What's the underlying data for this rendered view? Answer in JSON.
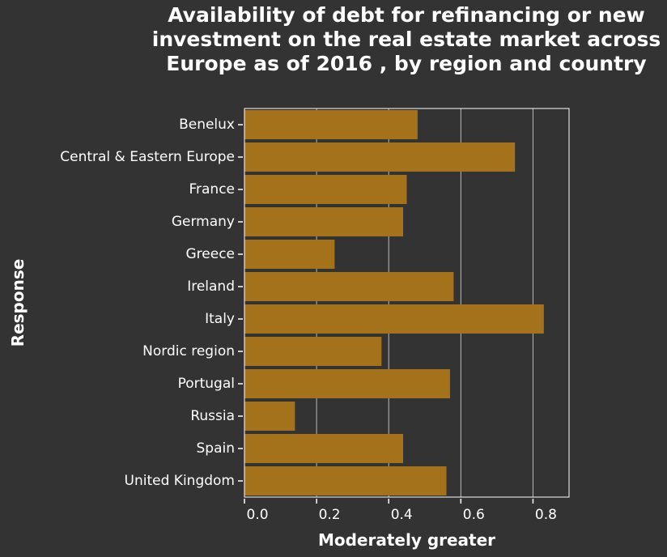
{
  "chart_data": {
    "type": "bar",
    "orientation": "horizontal",
    "title": "Availability of debt for refinancing or new investment on the real estate market across Europe as of 2016 , by region and country",
    "xlabel": "Moderately greater",
    "ylabel": "Response",
    "categories": [
      "Benelux",
      "Central & Eastern Europe",
      "France",
      "Germany",
      "Greece",
      "Ireland",
      "Italy",
      "Nordic region",
      "Portugal",
      "Russia",
      "Spain",
      "United Kingdom"
    ],
    "values": [
      0.48,
      0.75,
      0.45,
      0.44,
      0.25,
      0.58,
      0.83,
      0.38,
      0.57,
      0.14,
      0.44,
      0.56
    ],
    "xlim": [
      0,
      0.9
    ],
    "xticks": [
      "0.0",
      "0.2",
      "0.4",
      "0.6",
      "0.8"
    ],
    "grid": "vertical",
    "legend": "none",
    "colors": {
      "bar": "#a5721c",
      "background": "#333333",
      "grid": "#bbbbbb",
      "text": "#ffffff"
    }
  }
}
